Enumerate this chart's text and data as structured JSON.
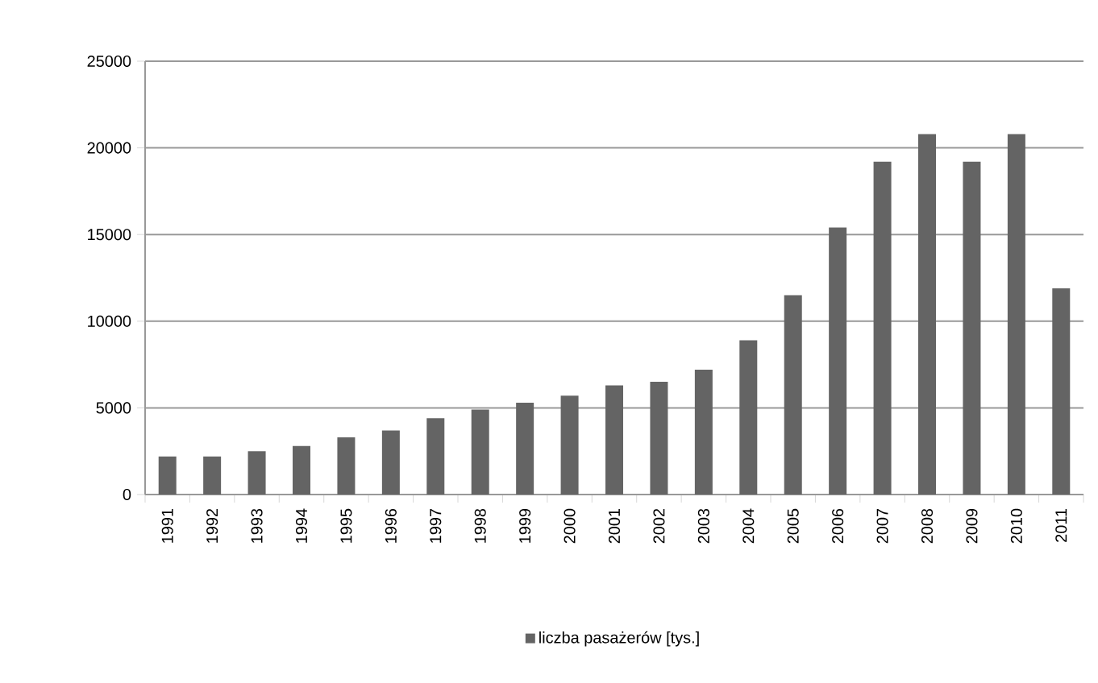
{
  "chart_data": {
    "type": "bar",
    "categories": [
      "1991",
      "1992",
      "1993",
      "1994",
      "1995",
      "1996",
      "1997",
      "1998",
      "1999",
      "2000",
      "2001",
      "2002",
      "2003",
      "2004",
      "2005",
      "2006",
      "2007",
      "2008",
      "2009",
      "2010",
      "2011"
    ],
    "series": [
      {
        "name": "liczba pasażerów [tys.]",
        "color": "#646464",
        "values": [
          2200,
          2200,
          2500,
          2800,
          3300,
          3700,
          4400,
          4900,
          5300,
          5700,
          6300,
          6500,
          7200,
          8900,
          11500,
          15400,
          19200,
          20800,
          19200,
          20800,
          11900
        ]
      }
    ],
    "ylim": [
      0,
      25000
    ],
    "yticks": [
      0,
      5000,
      10000,
      15000,
      20000,
      25000
    ],
    "grid": "y",
    "legend": "bottom"
  }
}
